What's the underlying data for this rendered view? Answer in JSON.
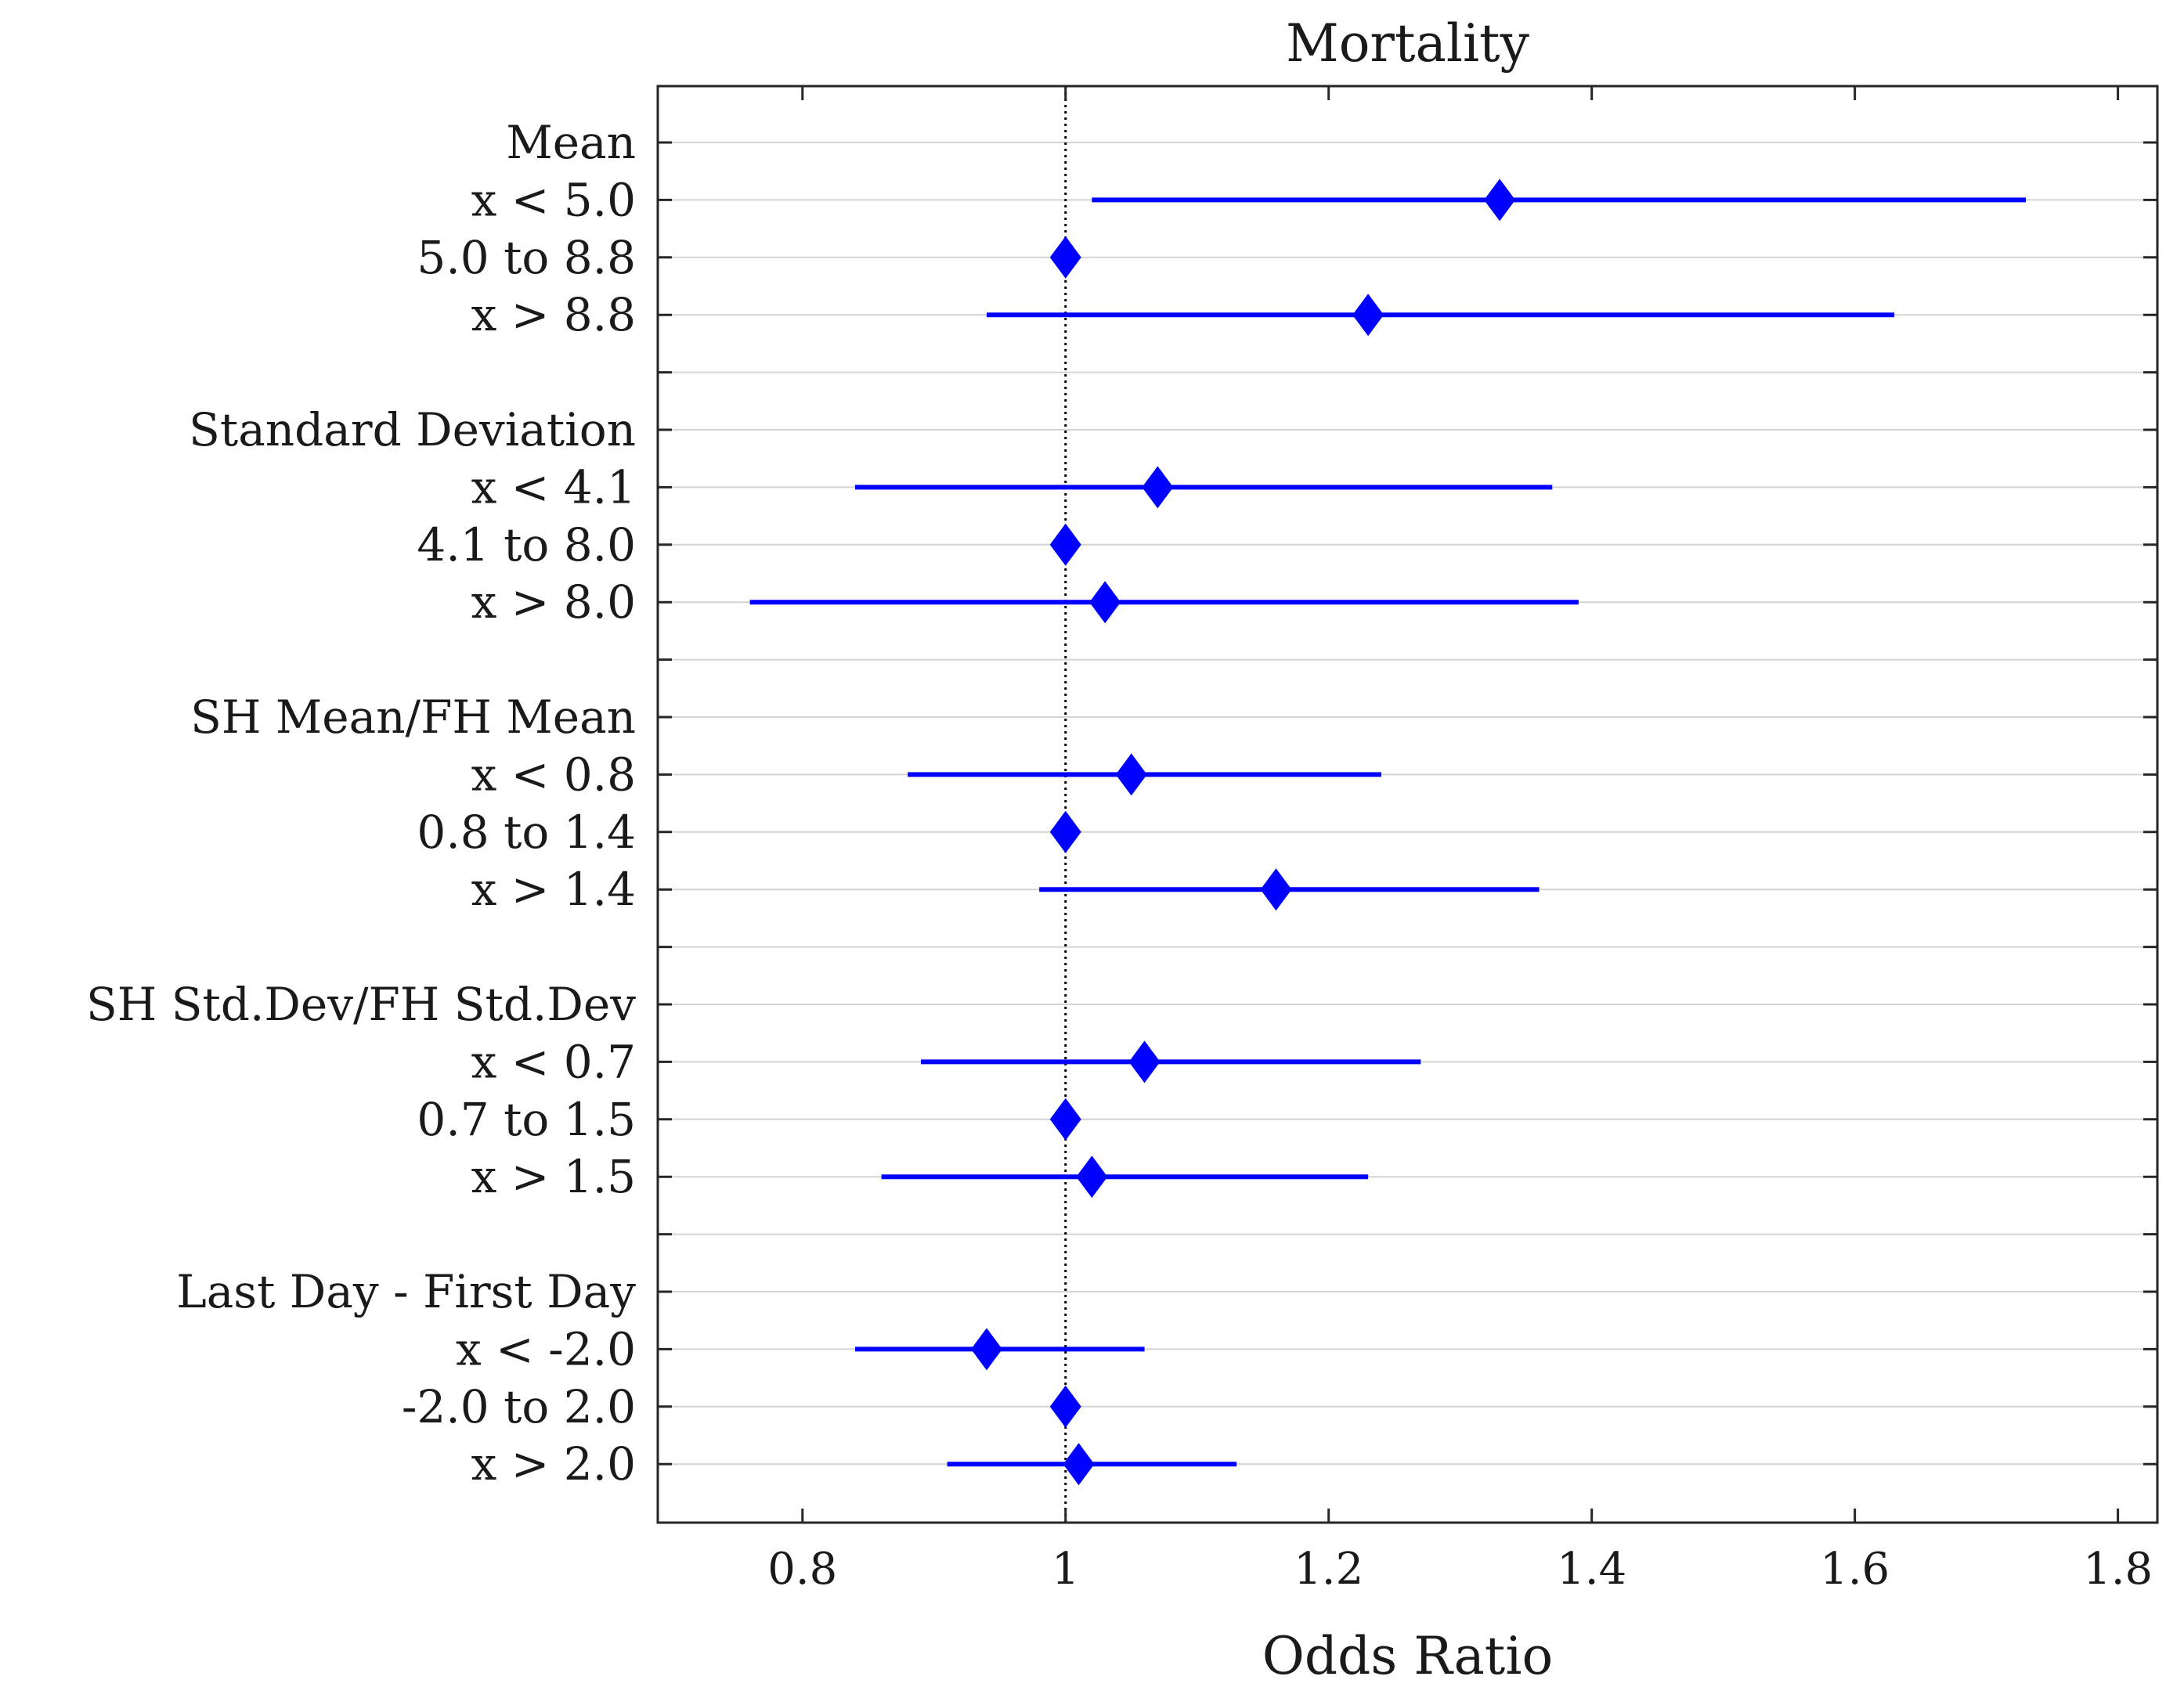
{
  "chart_data": {
    "type": "forest",
    "title": "Mortality",
    "xlabel": "Odds Ratio",
    "xlim": [
      0.69,
      1.83
    ],
    "xticks": [
      0.8,
      1,
      1.2,
      1.4,
      1.6,
      1.8
    ],
    "xtick_labels": [
      "0.8",
      "1",
      "1.2",
      "1.4",
      "1.6",
      "1.8"
    ],
    "reference_value": 1,
    "colors": {
      "series": "#0000ff",
      "reference": "#000000"
    },
    "rows": [
      {
        "label": "Mean",
        "header": true
      },
      {
        "label": "x < 5.0",
        "or": 1.33,
        "lo": 1.02,
        "hi": 1.73
      },
      {
        "label": "5.0 to 8.8",
        "or": 1.0
      },
      {
        "label": "x > 8.8",
        "or": 1.23,
        "lo": 0.94,
        "hi": 1.63
      },
      {
        "label": "",
        "spacer": true
      },
      {
        "label": "Standard Deviation",
        "header": true
      },
      {
        "label": "x < 4.1",
        "or": 1.07,
        "lo": 0.84,
        "hi": 1.37
      },
      {
        "label": "4.1 to 8.0",
        "or": 1.0
      },
      {
        "label": "x > 8.0",
        "or": 1.03,
        "lo": 0.76,
        "hi": 1.39
      },
      {
        "label": "",
        "spacer": true
      },
      {
        "label": "SH Mean/FH Mean",
        "header": true
      },
      {
        "label": "x < 0.8",
        "or": 1.05,
        "lo": 0.88,
        "hi": 1.24
      },
      {
        "label": "0.8 to 1.4",
        "or": 1.0
      },
      {
        "label": "x > 1.4",
        "or": 1.16,
        "lo": 0.98,
        "hi": 1.36
      },
      {
        "label": "",
        "spacer": true
      },
      {
        "label": "SH Std.Dev/FH Std.Dev",
        "header": true
      },
      {
        "label": "x < 0.7",
        "or": 1.06,
        "lo": 0.89,
        "hi": 1.27
      },
      {
        "label": "0.7 to 1.5",
        "or": 1.0
      },
      {
        "label": "x > 1.5",
        "or": 1.02,
        "lo": 0.86,
        "hi": 1.23
      },
      {
        "label": "",
        "spacer": true
      },
      {
        "label": "Last Day - First Day",
        "header": true
      },
      {
        "label": "x < -2.0",
        "or": 0.94,
        "lo": 0.84,
        "hi": 1.06
      },
      {
        "label": "-2.0 to 2.0",
        "or": 1.0
      },
      {
        "label": "x > 2.0",
        "or": 1.01,
        "lo": 0.91,
        "hi": 1.13
      }
    ]
  }
}
